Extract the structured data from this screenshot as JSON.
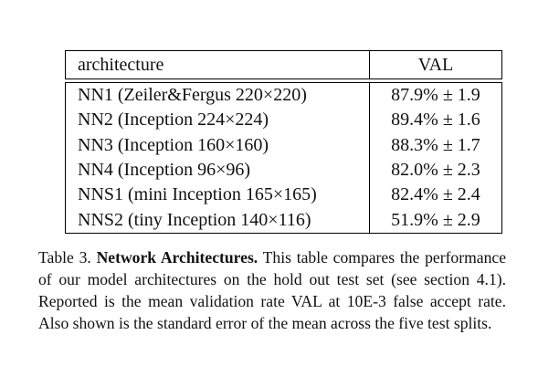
{
  "table": {
    "header": {
      "architecture": "architecture",
      "val": "VAL"
    },
    "rows": [
      {
        "architecture": "NN1 (Zeiler&Fergus 220×220)",
        "val": "87.9% ± 1.9"
      },
      {
        "architecture": "NN2 (Inception 224×224)",
        "val": "89.4% ± 1.6"
      },
      {
        "architecture": "NN3 (Inception 160×160)",
        "val": "88.3% ± 1.7"
      },
      {
        "architecture": "NN4 (Inception 96×96)",
        "val": "82.0% ± 2.3"
      },
      {
        "architecture": "NNS1 (mini Inception 165×165)",
        "val": "82.4% ± 2.4"
      },
      {
        "architecture": "NNS2 (tiny Inception 140×116)",
        "val": "51.9% ± 2.9"
      }
    ]
  },
  "caption": {
    "label": "Table 3.",
    "title": "Network Architectures.",
    "body": "This table compares the performance of our model architectures on the hold out test set (see section 4.1). Reported is the mean validation rate VAL at 10E-3 false accept rate. Also shown is the standard error of the mean across the five test splits."
  }
}
